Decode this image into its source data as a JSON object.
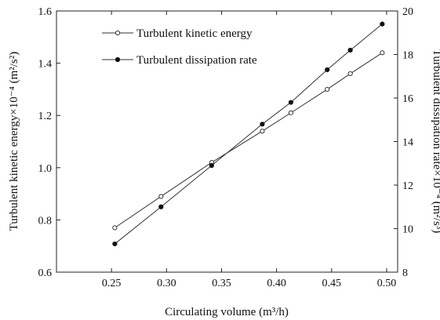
{
  "chart_data": {
    "type": "line",
    "x": [
      0.253,
      0.295,
      0.341,
      0.387,
      0.413,
      0.446,
      0.467,
      0.496
    ],
    "xlim": [
      0.2,
      0.51
    ],
    "xticks": [
      "0.25",
      "0.30",
      "0.35",
      "0.40",
      "0.45",
      "0.50"
    ],
    "xtick_values": [
      0.25,
      0.3,
      0.35,
      0.4,
      0.45,
      0.5
    ],
    "xlabel": "Circulating volume (m³/h)",
    "left_axis": {
      "label": "Turbulent kinetic energy×10⁻⁴ (m²/s²)",
      "ylim": [
        0.6,
        1.6
      ],
      "ticks": [
        "0.6",
        "0.8",
        "1.0",
        "1.2",
        "1.4",
        "1.6"
      ],
      "tick_values": [
        0.6,
        0.8,
        1.0,
        1.2,
        1.4,
        1.6
      ]
    },
    "right_axis": {
      "label": "Turbulent dissipation rate×10⁻⁴ (m²/s³)",
      "ylim": [
        8,
        20
      ],
      "ticks": [
        "8",
        "10",
        "12",
        "14",
        "16",
        "18",
        "20"
      ],
      "tick_values": [
        8,
        10,
        12,
        14,
        16,
        18,
        20
      ]
    },
    "series": [
      {
        "name": "Turbulent kinetic energy",
        "axis": "left",
        "marker": "open-circle",
        "values": [
          0.77,
          0.89,
          1.02,
          1.14,
          1.21,
          1.3,
          1.36,
          1.44
        ]
      },
      {
        "name": "Turbulent dissipation rate",
        "axis": "right",
        "marker": "filled-circle",
        "values": [
          9.3,
          11.0,
          12.9,
          14.8,
          15.8,
          17.3,
          18.2,
          19.4
        ]
      }
    ],
    "legend": "top-left",
    "grid": false
  }
}
